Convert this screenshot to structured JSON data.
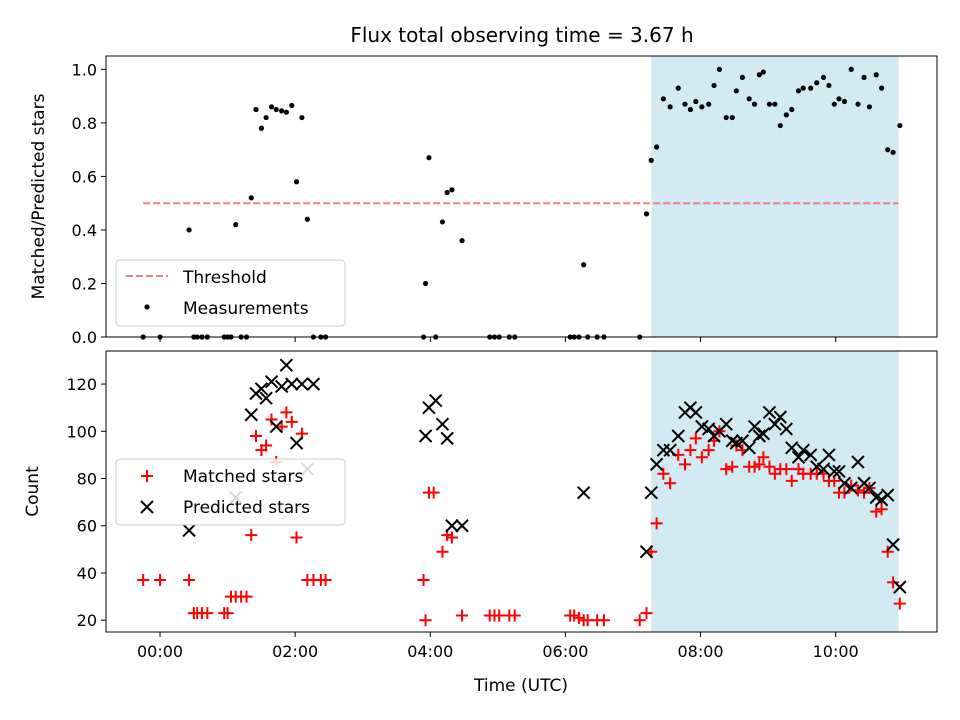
{
  "chart_data": [
    {
      "type": "scatter",
      "title": "Flux total observing time = 3.67 h",
      "ylabel": "Matched/Predicted stars",
      "xlim": [
        -0.8,
        11.5
      ],
      "ylim": [
        0,
        1.05
      ],
      "yticks": [
        "0.0",
        "0.2",
        "0.4",
        "0.6",
        "0.8",
        "1.0"
      ],
      "ytick_values": [
        0,
        0.2,
        0.4,
        0.6,
        0.8,
        1.0
      ],
      "shaded_range": [
        7.27,
        10.93
      ],
      "shade_color": "#add8e6",
      "threshold": {
        "name": "Threshold",
        "value": 0.5,
        "x": [
          -0.25,
          10.93
        ],
        "color": "#f08080"
      },
      "legend": {
        "position": "lower-left",
        "entries": [
          "Threshold",
          "Measurements"
        ]
      },
      "series": [
        {
          "name": "Measurements",
          "color": "#000000",
          "x": [
            -0.25,
            0.0,
            0.43,
            0.5,
            0.55,
            0.62,
            0.7,
            0.95,
            1.0,
            1.05,
            1.12,
            1.2,
            1.28,
            1.35,
            1.42,
            1.5,
            1.57,
            1.65,
            1.72,
            1.8,
            1.87,
            1.95,
            2.02,
            2.1,
            2.18,
            2.27,
            2.38,
            2.45,
            3.9,
            3.93,
            3.98,
            4.08,
            4.18,
            4.25,
            4.32,
            4.47,
            4.88,
            4.95,
            5.02,
            5.17,
            5.25,
            6.07,
            6.13,
            6.2,
            6.27,
            6.33,
            6.47,
            6.57,
            7.1,
            7.2,
            7.27,
            7.35,
            7.45,
            7.55,
            7.67,
            7.77,
            7.85,
            7.93,
            8.02,
            8.12,
            8.2,
            8.28,
            8.38,
            8.47,
            8.53,
            8.62,
            8.72,
            8.8,
            8.87,
            8.93,
            9.02,
            9.1,
            9.18,
            9.27,
            9.35,
            9.45,
            9.52,
            9.63,
            9.72,
            9.82,
            9.9,
            9.98,
            10.05,
            10.13,
            10.23,
            10.33,
            10.42,
            10.5,
            10.6,
            10.68,
            10.77,
            10.85,
            10.95
          ],
          "y": [
            0.0,
            0.0,
            0.4,
            0.0,
            0.0,
            0.0,
            0.0,
            0.0,
            0.0,
            0.0,
            0.42,
            0.0,
            0.0,
            0.52,
            0.85,
            0.78,
            0.82,
            0.86,
            0.85,
            0.845,
            0.84,
            0.865,
            0.58,
            0.82,
            0.44,
            0.0,
            0.0,
            0.0,
            0.0,
            0.2,
            0.67,
            0.0,
            0.43,
            0.54,
            0.55,
            0.36,
            0.0,
            0.0,
            0.0,
            0.0,
            0.0,
            0.0,
            0.0,
            0.0,
            0.27,
            0.0,
            0.0,
            0.0,
            0.0,
            0.46,
            0.66,
            0.71,
            0.89,
            0.86,
            0.93,
            0.87,
            0.85,
            0.88,
            0.86,
            0.87,
            0.94,
            1.0,
            0.82,
            0.82,
            0.92,
            0.97,
            0.89,
            0.87,
            0.98,
            0.99,
            0.87,
            0.87,
            0.79,
            0.83,
            0.85,
            0.92,
            0.93,
            0.93,
            0.95,
            0.97,
            0.94,
            0.87,
            0.89,
            0.88,
            1.0,
            0.87,
            0.97,
            0.86,
            0.98,
            0.93,
            0.7,
            0.69,
            0.79
          ]
        }
      ]
    },
    {
      "type": "scatter",
      "ylabel": "Count",
      "xlabel": "Time (UTC)",
      "xlim": [
        -0.8,
        11.5
      ],
      "ylim": [
        15,
        134
      ],
      "xticks": [
        "00:00",
        "02:00",
        "04:00",
        "06:00",
        "08:00",
        "10:00"
      ],
      "xtick_values": [
        0,
        2,
        4,
        6,
        8,
        10
      ],
      "yticks": [
        "20",
        "40",
        "60",
        "80",
        "100",
        "120"
      ],
      "ytick_values": [
        20,
        40,
        60,
        80,
        100,
        120
      ],
      "shaded_range": [
        7.27,
        10.93
      ],
      "shade_color": "#add8e6",
      "legend": {
        "position": "center-left",
        "entries": [
          "Matched stars",
          "Predicted stars"
        ]
      },
      "series": [
        {
          "name": "Matched stars",
          "marker": "plus",
          "color": "#ff0000",
          "x": [
            -0.25,
            0.0,
            0.43,
            0.5,
            0.55,
            0.62,
            0.7,
            0.95,
            1.0,
            1.05,
            1.12,
            1.2,
            1.28,
            1.35,
            1.42,
            1.5,
            1.57,
            1.65,
            1.72,
            1.8,
            1.87,
            1.95,
            2.02,
            2.1,
            2.18,
            2.27,
            2.38,
            2.45,
            3.9,
            3.93,
            3.98,
            4.05,
            4.18,
            4.25,
            4.32,
            4.47,
            4.88,
            4.95,
            5.02,
            5.17,
            5.25,
            6.07,
            6.13,
            6.2,
            6.27,
            6.33,
            6.47,
            6.57,
            7.1,
            7.2,
            7.27,
            7.35,
            7.45,
            7.55,
            7.67,
            7.77,
            7.85,
            7.93,
            8.02,
            8.12,
            8.2,
            8.28,
            8.38,
            8.47,
            8.53,
            8.62,
            8.72,
            8.8,
            8.87,
            8.93,
            9.02,
            9.1,
            9.18,
            9.27,
            9.35,
            9.45,
            9.52,
            9.63,
            9.72,
            9.82,
            9.9,
            9.98,
            10.05,
            10.13,
            10.23,
            10.33,
            10.42,
            10.5,
            10.6,
            10.68,
            10.77,
            10.85,
            10.95
          ],
          "y": [
            37,
            37,
            37,
            23,
            23,
            23,
            23,
            23,
            23,
            30,
            30,
            30,
            30,
            56,
            98,
            92,
            94,
            105,
            87,
            102,
            108,
            104,
            55,
            99,
            37,
            37,
            37,
            37,
            37,
            20,
            74,
            74,
            49,
            56,
            55,
            22,
            22,
            22,
            22,
            22,
            22,
            22,
            22,
            21,
            20,
            20,
            20,
            20,
            20,
            23,
            49,
            61,
            82,
            78,
            90,
            86,
            92,
            97,
            89,
            92,
            96,
            100,
            84,
            85,
            94,
            92,
            85,
            85,
            86,
            89,
            85,
            82,
            84,
            84,
            79,
            84,
            82,
            82,
            82,
            82,
            79,
            79,
            74,
            74,
            77,
            75,
            74,
            76,
            66,
            67,
            49,
            36,
            27
          ]
        },
        {
          "name": "Predicted stars",
          "marker": "x",
          "color": "#000000",
          "x": [
            0.43,
            1.12,
            1.35,
            1.42,
            1.5,
            1.57,
            1.65,
            1.72,
            1.8,
            1.87,
            1.95,
            2.02,
            2.1,
            2.18,
            2.27,
            3.93,
            3.98,
            4.08,
            4.18,
            4.25,
            4.32,
            4.47,
            6.27,
            7.2,
            7.27,
            7.35,
            7.45,
            7.55,
            7.67,
            7.77,
            7.85,
            7.93,
            8.02,
            8.12,
            8.2,
            8.28,
            8.38,
            8.47,
            8.53,
            8.62,
            8.72,
            8.8,
            8.87,
            8.93,
            9.02,
            9.1,
            9.18,
            9.27,
            9.35,
            9.45,
            9.52,
            9.63,
            9.72,
            9.82,
            9.9,
            9.98,
            10.05,
            10.13,
            10.23,
            10.33,
            10.42,
            10.5,
            10.6,
            10.68,
            10.77,
            10.85,
            10.95
          ],
          "y": [
            58,
            72,
            107,
            116,
            118,
            114,
            121,
            102,
            119,
            128,
            120,
            95,
            120,
            84,
            120,
            98,
            110,
            113,
            103,
            97,
            60,
            60,
            74,
            49,
            74,
            86,
            92,
            92,
            98,
            108,
            110,
            108,
            102,
            101,
            98,
            100,
            103,
            96,
            95,
            96,
            93,
            102,
            98,
            99,
            108,
            103,
            106,
            101,
            93,
            89,
            92,
            90,
            85,
            84,
            90,
            83,
            83,
            78,
            76,
            87,
            78,
            76,
            72,
            71,
            73,
            52,
            34
          ]
        }
      ]
    }
  ]
}
